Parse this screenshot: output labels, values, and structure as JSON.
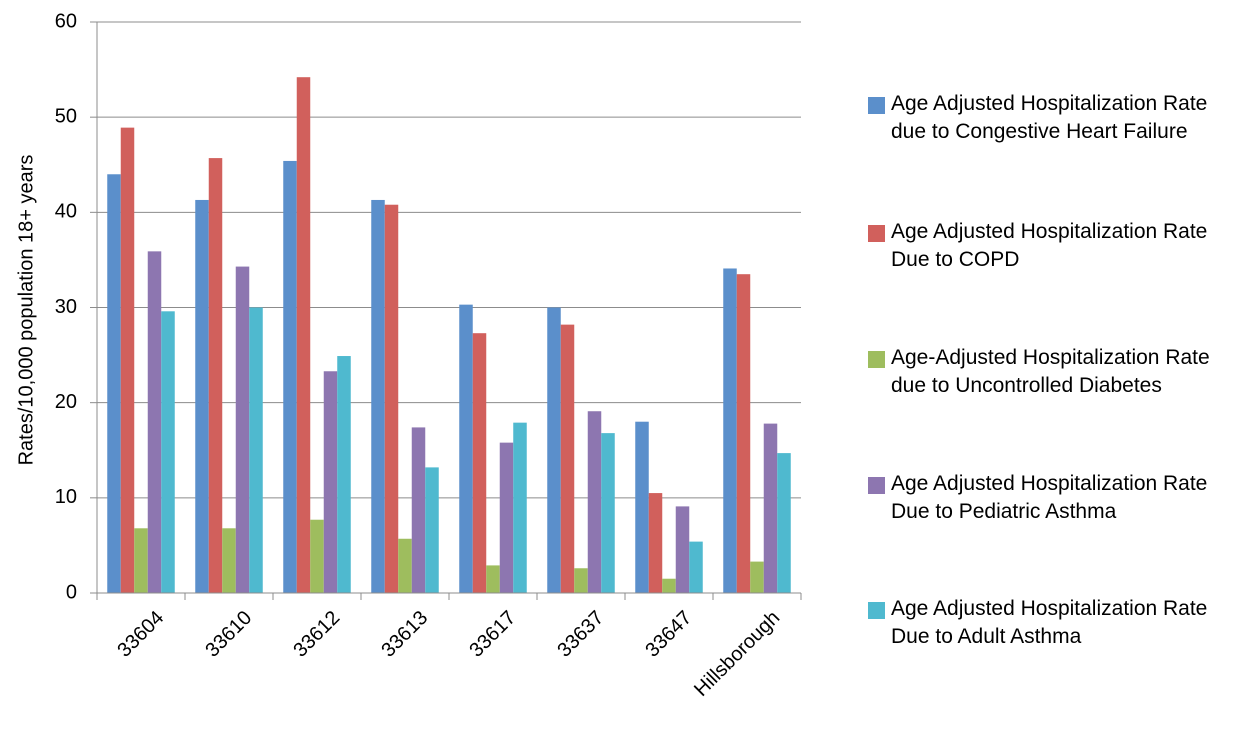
{
  "chart_data": {
    "type": "bar",
    "title": "",
    "xlabel": "",
    "ylabel": "Rates/10,000 population 18+ years",
    "ylim": [
      0,
      60
    ],
    "yticks": [
      0,
      10,
      20,
      30,
      40,
      50,
      60
    ],
    "grid": true,
    "legend_position": "right",
    "categories": [
      "33604",
      "33610",
      "33612",
      "33613",
      "33617",
      "33637",
      "33647",
      "Hillsborough"
    ],
    "series": [
      {
        "name": "Age Adjusted Hospitalization Rate due to Congestive Heart Failure",
        "color": "#5b8fcb",
        "values": [
          44.0,
          41.3,
          45.4,
          41.3,
          30.3,
          30.0,
          18.0,
          34.1
        ]
      },
      {
        "name": "Age Adjusted Hospitalization Rate Due to COPD",
        "color": "#d1605c",
        "values": [
          48.9,
          45.7,
          54.2,
          40.8,
          27.3,
          28.2,
          10.5,
          33.5
        ]
      },
      {
        "name": "Age-Adjusted Hospitalization Rate due to Uncontrolled Diabetes",
        "color": "#9ebd5e",
        "values": [
          6.8,
          6.8,
          7.7,
          5.7,
          2.9,
          2.6,
          1.5,
          3.3
        ]
      },
      {
        "name": "Age Adjusted Hospitalization Rate Due to Pediatric Asthma",
        "color": "#8d76b0",
        "values": [
          35.9,
          34.3,
          23.3,
          17.4,
          15.8,
          19.1,
          9.1,
          17.8
        ]
      },
      {
        "name": "Age Adjusted Hospitalization Rate Due to Adult Asthma",
        "color": "#4fb9cf",
        "values": [
          29.6,
          30.0,
          24.9,
          13.2,
          17.9,
          16.8,
          5.4,
          14.7
        ]
      }
    ]
  }
}
